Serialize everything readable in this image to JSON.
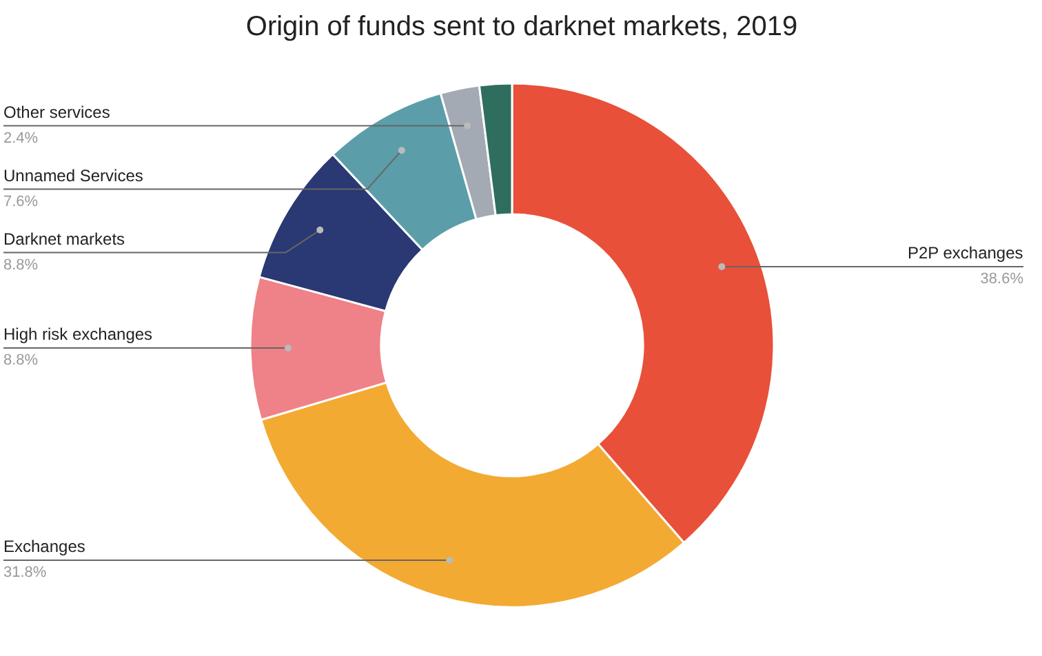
{
  "chart_data": {
    "type": "donut",
    "title": "Origin of funds sent to darknet markets, 2019",
    "categories": [
      "P2P exchanges",
      "Exchanges",
      "High risk exchanges",
      "Darknet markets",
      "Unnamed Services",
      "Other services",
      null
    ],
    "values": [
      38.6,
      31.8,
      8.8,
      8.8,
      7.6,
      2.4,
      2.0
    ],
    "value_labels": [
      "38.6%",
      "31.8%",
      "8.8%",
      "8.8%",
      "7.6%",
      "2.4%",
      null
    ],
    "colors": [
      "#e8503a",
      "#f3aa32",
      "#ee8288",
      "#2a3873",
      "#5b9ea9",
      "#a3aab3",
      "#2f6e5f"
    ]
  }
}
